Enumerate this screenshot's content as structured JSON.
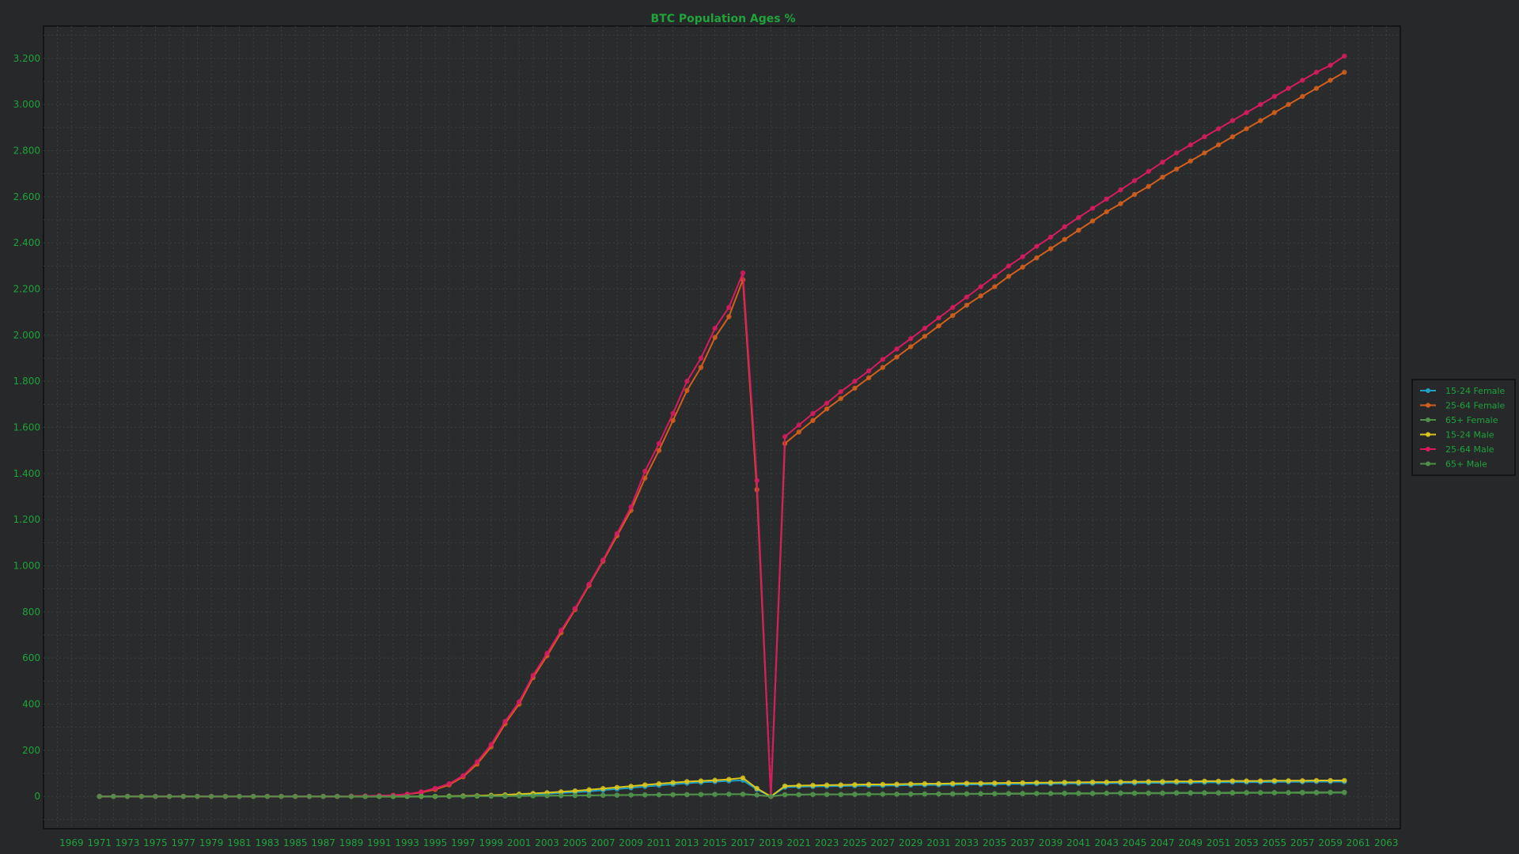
{
  "chart_data": {
    "type": "line",
    "title": "BTC Population Ages %",
    "xlabel": "",
    "ylabel": "",
    "xlim": [
      1967,
      2064
    ],
    "ylim": [
      -140,
      3340
    ],
    "x_ticks": [
      1969,
      1971,
      1973,
      1975,
      1977,
      1979,
      1981,
      1983,
      1985,
      1987,
      1989,
      1991,
      1993,
      1995,
      1997,
      1999,
      2001,
      2003,
      2005,
      2007,
      2009,
      2011,
      2013,
      2015,
      2017,
      2019,
      2021,
      2023,
      2025,
      2027,
      2029,
      2031,
      2033,
      2035,
      2037,
      2039,
      2041,
      2043,
      2045,
      2047,
      2049,
      2051,
      2053,
      2055,
      2057,
      2059,
      2061,
      2063
    ],
    "y_ticks": [
      0,
      200,
      400,
      600,
      800,
      1000,
      1200,
      1400,
      1600,
      1800,
      2000,
      2200,
      2400,
      2600,
      2800,
      3000,
      3200
    ],
    "y_tick_labels": [
      "0",
      "200",
      "400",
      "600",
      "800",
      "1.000",
      "1.200",
      "1.400",
      "1.600",
      "1.800",
      "2.000",
      "2.200",
      "2.400",
      "2.600",
      "2.800",
      "3.000",
      "3.200"
    ],
    "grid": true,
    "legend_position": "right",
    "x": [
      1971,
      1972,
      1973,
      1974,
      1975,
      1976,
      1977,
      1978,
      1979,
      1980,
      1981,
      1982,
      1983,
      1984,
      1985,
      1986,
      1987,
      1988,
      1989,
      1990,
      1991,
      1992,
      1993,
      1994,
      1995,
      1996,
      1997,
      1998,
      1999,
      2000,
      2001,
      2002,
      2003,
      2004,
      2005,
      2006,
      2007,
      2008,
      2009,
      2010,
      2011,
      2012,
      2013,
      2014,
      2015,
      2016,
      2017,
      2018,
      2019,
      2020,
      2021,
      2022,
      2023,
      2024,
      2025,
      2026,
      2027,
      2028,
      2029,
      2030,
      2031,
      2032,
      2033,
      2034,
      2035,
      2036,
      2037,
      2038,
      2039,
      2040,
      2041,
      2042,
      2043,
      2044,
      2045,
      2046,
      2047,
      2048,
      2049,
      2050,
      2051,
      2052,
      2053,
      2054,
      2055,
      2056,
      2057,
      2058,
      2059,
      2060
    ],
    "series": [
      {
        "name": "15-24 Female",
        "color": "#1f9fc4",
        "values": [
          0,
          0,
          0,
          0,
          0,
          0,
          0,
          0,
          0,
          0,
          0,
          0,
          0,
          0,
          0,
          0,
          0,
          0,
          0,
          0,
          0,
          0,
          0,
          0,
          0,
          1,
          1,
          2,
          3,
          5,
          7,
          9,
          12,
          15,
          18,
          22,
          27,
          32,
          37,
          43,
          48,
          53,
          57,
          61,
          64,
          67,
          70,
          30,
          0,
          40,
          42,
          43,
          44,
          45,
          46,
          47,
          47,
          48,
          49,
          50,
          50,
          51,
          52,
          52,
          53,
          54,
          54,
          55,
          55,
          56,
          56,
          57,
          57,
          58,
          58,
          59,
          59,
          60,
          60,
          61,
          61,
          62,
          62,
          62,
          63,
          63,
          63,
          64,
          64,
          64
        ]
      },
      {
        "name": "25-64 Female",
        "color": "#d35f1c",
        "values": [
          0,
          0,
          0,
          0,
          0,
          0,
          0,
          0,
          0,
          0,
          0,
          0,
          0,
          0,
          0,
          0,
          0,
          0,
          1,
          2,
          3,
          5,
          9,
          17,
          30,
          50,
          85,
          140,
          215,
          315,
          400,
          515,
          610,
          710,
          810,
          915,
          1020,
          1130,
          1240,
          1380,
          1500,
          1630,
          1760,
          1860,
          1990,
          2080,
          2240,
          1330,
          0,
          1530,
          1580,
          1630,
          1680,
          1725,
          1770,
          1815,
          1860,
          1905,
          1950,
          1995,
          2040,
          2085,
          2130,
          2170,
          2210,
          2255,
          2295,
          2335,
          2375,
          2415,
          2455,
          2495,
          2535,
          2570,
          2610,
          2645,
          2685,
          2720,
          2755,
          2790,
          2825,
          2860,
          2895,
          2930,
          2965,
          3000,
          3035,
          3070,
          3105,
          3140
        ]
      },
      {
        "name": "65+ Female",
        "color": "#4f8f4a",
        "values": [
          0,
          0,
          0,
          0,
          0,
          0,
          0,
          0,
          0,
          0,
          0,
          0,
          0,
          0,
          0,
          0,
          0,
          0,
          0,
          0,
          0,
          0,
          0,
          0,
          0,
          0,
          0,
          1,
          1,
          1,
          2,
          2,
          3,
          3,
          4,
          4,
          5,
          5,
          6,
          6,
          7,
          7,
          8,
          8,
          9,
          9,
          9,
          6,
          0,
          7,
          7,
          8,
          8,
          8,
          8,
          9,
          9,
          9,
          9,
          10,
          10,
          10,
          10,
          11,
          11,
          11,
          11,
          12,
          12,
          12,
          12,
          12,
          13,
          13,
          13,
          13,
          13,
          14,
          14,
          14,
          14,
          14,
          15,
          15,
          15,
          15,
          15,
          15,
          16,
          16
        ]
      },
      {
        "name": "15-24 Male",
        "color": "#d9c51c",
        "values": [
          0,
          0,
          0,
          0,
          0,
          0,
          0,
          0,
          0,
          0,
          0,
          0,
          0,
          0,
          0,
          0,
          0,
          0,
          0,
          0,
          0,
          0,
          0,
          0,
          0,
          1,
          2,
          3,
          5,
          7,
          10,
          13,
          16,
          20,
          24,
          29,
          34,
          39,
          44,
          50,
          55,
          60,
          64,
          67,
          70,
          74,
          80,
          35,
          0,
          45,
          47,
          48,
          49,
          50,
          51,
          52,
          52,
          53,
          54,
          55,
          55,
          56,
          57,
          57,
          58,
          59,
          59,
          60,
          60,
          61,
          61,
          62,
          62,
          63,
          63,
          64,
          64,
          65,
          65,
          66,
          66,
          67,
          67,
          67,
          68,
          68,
          68,
          69,
          69,
          69
        ]
      },
      {
        "name": "25-64 Male",
        "color": "#d81b60",
        "values": [
          0,
          0,
          0,
          0,
          0,
          0,
          0,
          0,
          0,
          0,
          0,
          0,
          0,
          0,
          0,
          0,
          0,
          0,
          1,
          2,
          3,
          5,
          10,
          20,
          35,
          55,
          90,
          150,
          225,
          325,
          410,
          525,
          620,
          720,
          815,
          920,
          1025,
          1140,
          1255,
          1410,
          1530,
          1660,
          1800,
          1900,
          2030,
          2120,
          2270,
          1370,
          0,
          1560,
          1610,
          1660,
          1705,
          1755,
          1800,
          1845,
          1895,
          1940,
          1985,
          2030,
          2075,
          2120,
          2165,
          2210,
          2255,
          2300,
          2340,
          2385,
          2425,
          2470,
          2510,
          2550,
          2590,
          2630,
          2670,
          2710,
          2750,
          2790,
          2825,
          2860,
          2895,
          2930,
          2965,
          3000,
          3035,
          3070,
          3105,
          3140,
          3170,
          3210
        ]
      },
      {
        "name": "65+ Male",
        "color": "#4f8f4a",
        "values": [
          0,
          0,
          0,
          0,
          0,
          0,
          0,
          0,
          0,
          0,
          0,
          0,
          0,
          0,
          0,
          0,
          0,
          0,
          0,
          0,
          0,
          0,
          0,
          0,
          0,
          0,
          0,
          1,
          1,
          2,
          2,
          3,
          3,
          4,
          4,
          5,
          5,
          6,
          6,
          7,
          7,
          8,
          8,
          9,
          9,
          10,
          10,
          6,
          0,
          8,
          8,
          9,
          9,
          9,
          10,
          10,
          10,
          10,
          11,
          11,
          11,
          12,
          12,
          12,
          12,
          13,
          13,
          13,
          13,
          14,
          14,
          14,
          14,
          15,
          15,
          15,
          15,
          16,
          16,
          16,
          16,
          17,
          17,
          17,
          17,
          17,
          18,
          18,
          18,
          18
        ]
      }
    ]
  }
}
